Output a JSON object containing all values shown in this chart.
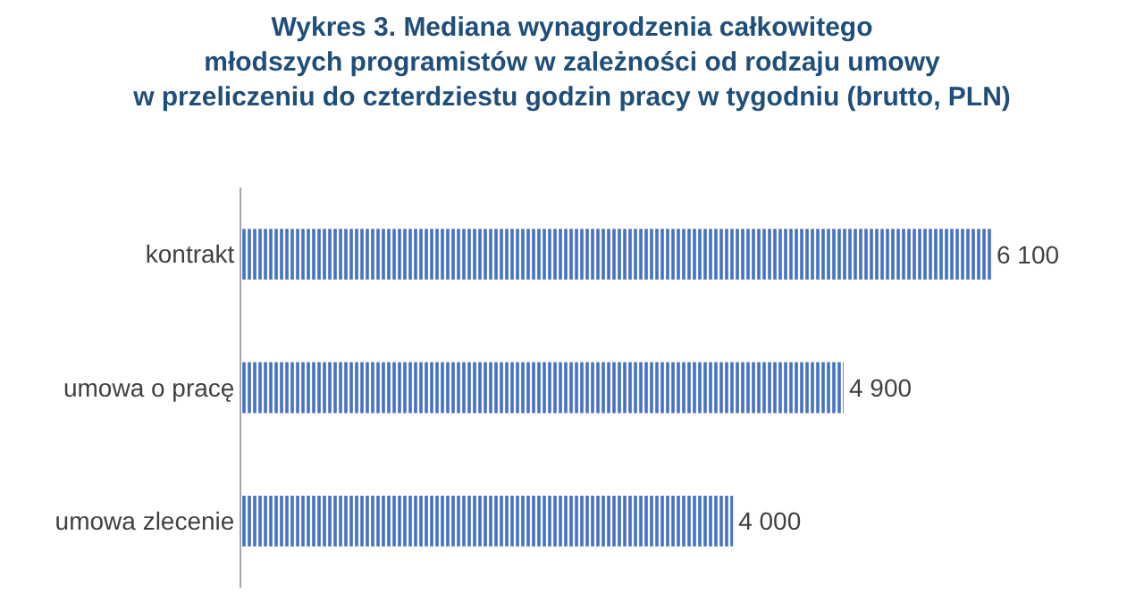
{
  "chart_data": {
    "type": "bar",
    "orientation": "horizontal",
    "title": "Wykres 3. Mediana wynagrodzenia całkowitego\nmłodszych programistów w zależności od rodzaju umowy\nw przeliczeniu do czterdziestu godzin pracy w tygodniu (brutto, PLN)",
    "categories": [
      "kontrakt",
      "umowa o pracę",
      "umowa zlecenie"
    ],
    "values": [
      6100,
      4900,
      4000
    ],
    "value_labels": [
      "6 100",
      "4 900",
      "4 000"
    ],
    "color": "#4472c4",
    "grid": false,
    "legend": false
  }
}
